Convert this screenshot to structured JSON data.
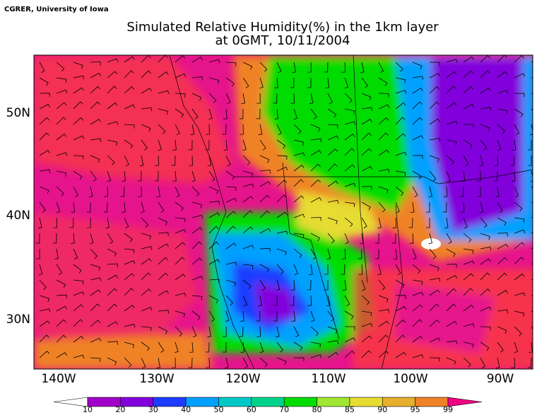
{
  "credit": "CGRER, University of Iowa",
  "title": [
    "Simulated Relative Humidity(%) in the 1km layer",
    "at 0GMT, 10/11/2004"
  ],
  "x_labels": [
    "140W",
    "130W",
    "120W",
    "110W",
    "100W",
    "90W"
  ],
  "y_labels": [
    "50N",
    "40N",
    "30N"
  ],
  "colorbar": {
    "levels": [
      "10",
      "20",
      "30",
      "40",
      "50",
      "60",
      "70",
      "80",
      "85",
      "90",
      "95",
      "99"
    ],
    "colors": [
      "#ffffff",
      "#a000c8",
      "#8200dc",
      "#1e3cff",
      "#00a0ff",
      "#00c8c8",
      "#00d28c",
      "#00dc00",
      "#a0e632",
      "#e6dc32",
      "#e6af2d",
      "#f08228",
      "#fa3c3c",
      "#f00082"
    ]
  }
}
